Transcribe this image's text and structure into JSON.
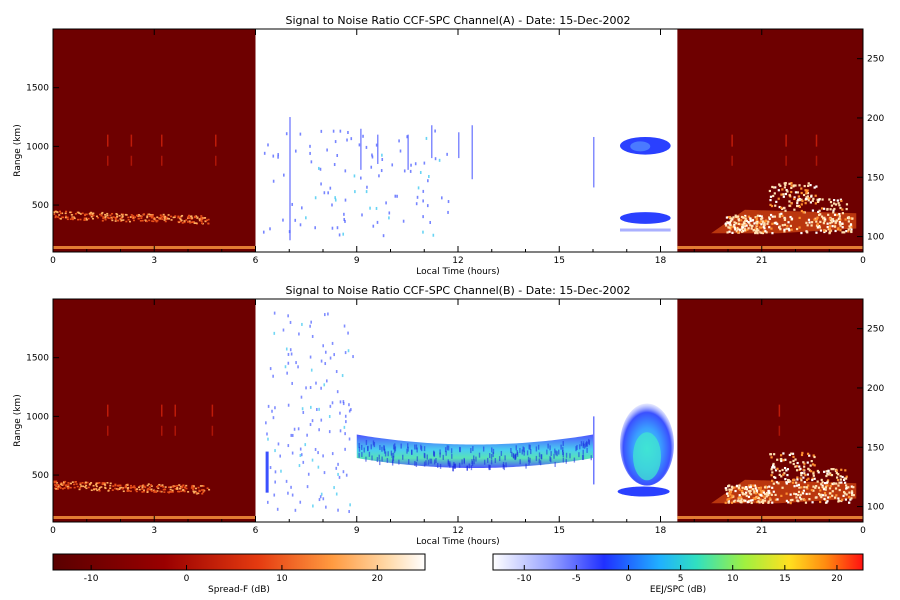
{
  "panels": [
    {
      "title": "Signal to Noise Ratio CCF-SPC Channel(A) - Date: 15-Dec-2002",
      "xlabel": "Local Time (hours)",
      "ylabel": "Range (km)",
      "x_ticks": [
        "0",
        "3",
        "6",
        "9",
        "12",
        "15",
        "18",
        "21",
        "0"
      ],
      "y_ticks": [
        "500",
        "1000",
        "1500"
      ],
      "right_ticks": [
        "100",
        "150",
        "200",
        "250"
      ]
    },
    {
      "title": "Signal to Noise Ratio CCF-SPC Channel(B) - Date: 15-Dec-2002",
      "xlabel": "Local Time (hours)",
      "ylabel": "Range (km)",
      "x_ticks": [
        "0",
        "3",
        "6",
        "9",
        "12",
        "15",
        "18",
        "21",
        "0"
      ],
      "y_ticks": [
        "500",
        "1000",
        "1500"
      ],
      "right_ticks": [
        "100",
        "150",
        "200",
        "250"
      ]
    }
  ],
  "colorbars": [
    {
      "label": "Spread-F (dB)",
      "ticks": [
        "-10",
        "0",
        "10",
        "20"
      ]
    },
    {
      "label": "EEJ/SPC (dB)",
      "ticks": [
        "-10",
        "-5",
        "0",
        "5",
        "10",
        "15",
        "20"
      ]
    }
  ],
  "colors": {
    "spread_f_background": "#6e0000",
    "eej_low": "#3a4cff",
    "eej_mid": "#35d6e8",
    "spread_f_hot": "#ffd9a8"
  },
  "chart_data": [
    {
      "type": "heatmap",
      "title": "Signal to Noise Ratio CCF-SPC Channel(A) - Date: 15-Dec-2002",
      "xlabel": "Local Time (hours)",
      "ylabel": "Range (km)",
      "xlim": [
        0,
        24
      ],
      "ylim": [
        100,
        2000
      ],
      "right_axis_ticks": [
        100,
        150,
        200,
        250
      ],
      "spread_f_windows_hours": [
        [
          0,
          6
        ],
        [
          18.5,
          24
        ]
      ],
      "eej_spc_window_hours": [
        6,
        18.5
      ],
      "features": [
        {
          "name": "Spread-F layer",
          "x_range": [
            0,
            4.6
          ],
          "y_center": 420
        },
        {
          "name": "echo patch",
          "x_range": [
            16.8,
            18.3
          ],
          "y_range": [
            930,
            1080
          ]
        },
        {
          "name": "echo patch",
          "x_range": [
            16.8,
            18.3
          ],
          "y_range": [
            340,
            440
          ]
        },
        {
          "name": "plumes",
          "x_range": [
            19.5,
            23.8
          ],
          "y_range": [
            250,
            600
          ]
        }
      ]
    },
    {
      "type": "heatmap",
      "title": "Signal to Noise Ratio CCF-SPC Channel(B) - Date: 15-Dec-2002",
      "xlabel": "Local Time (hours)",
      "ylabel": "Range (km)",
      "xlim": [
        0,
        24
      ],
      "ylim": [
        100,
        2000
      ],
      "right_axis_ticks": [
        100,
        150,
        200,
        250
      ],
      "spread_f_windows_hours": [
        [
          0,
          6
        ],
        [
          18.5,
          24
        ]
      ],
      "eej_spc_window_hours": [
        6,
        18.5
      ],
      "features": [
        {
          "name": "Spread-F layer",
          "x_range": [
            0,
            4.6
          ],
          "y_center": 420
        },
        {
          "name": "EEJ band",
          "x_range": [
            9,
            16
          ],
          "y_range": [
            600,
            850
          ]
        },
        {
          "name": "EEJ plume",
          "x_range": [
            16.8,
            18.4
          ],
          "y_range": [
            350,
            1050
          ]
        },
        {
          "name": "plumes",
          "x_range": [
            19.5,
            23.8
          ],
          "y_range": [
            250,
            600
          ]
        }
      ]
    }
  ]
}
